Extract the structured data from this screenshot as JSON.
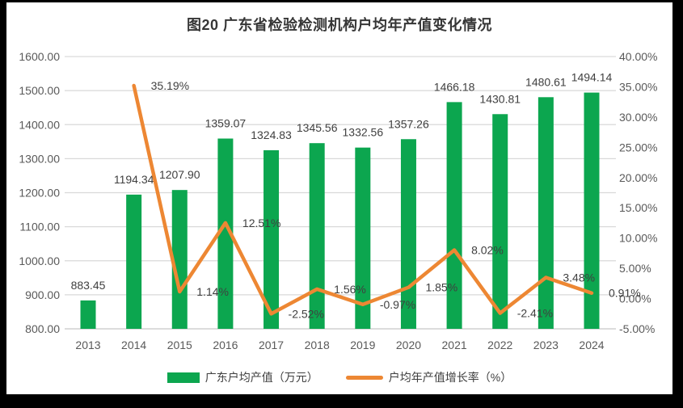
{
  "title": "图20 广东省检验检测机构户均年产值变化情况",
  "legend": {
    "bar_label": "广东户均产值（万元）",
    "line_label": "户均年产值增长率（%）"
  },
  "colors": {
    "bar": "#0ca64f",
    "line": "#ed8733",
    "grid": "#d9d9d9",
    "axis_line": "#c6c6c6",
    "axis_text": "#595959",
    "data_label": "#3f3f3f",
    "chart_background": "#ffffff",
    "frame": "#000000"
  },
  "chart_data": {
    "type": "combo",
    "title": "图20 广东省检验检测机构户均年产值变化情况",
    "categories": [
      "2013",
      "2014",
      "2015",
      "2016",
      "2017",
      "2018",
      "2019",
      "2020",
      "2021",
      "2022",
      "2023",
      "2024"
    ],
    "series": [
      {
        "name": "广东户均产值（万元）",
        "type": "bar",
        "axis": "left",
        "color": "#0ca64f",
        "values": [
          883.45,
          1194.34,
          1207.9,
          1359.07,
          1324.83,
          1345.56,
          1332.56,
          1357.26,
          1466.18,
          1430.81,
          1480.61,
          1494.14
        ],
        "labels": [
          "883.45",
          "1194.34",
          "1207.90",
          "1359.07",
          "1324.83",
          "1345.56",
          "1332.56",
          "1357.26",
          "1466.18",
          "1430.81",
          "1480.61",
          "1494.14"
        ]
      },
      {
        "name": "户均年产值增长率（%）",
        "type": "line",
        "axis": "right",
        "color": "#ed8733",
        "values": [
          null,
          35.19,
          1.14,
          12.51,
          -2.52,
          1.56,
          -0.97,
          1.85,
          8.02,
          -2.41,
          3.48,
          0.91
        ],
        "labels": [
          null,
          "35.19%",
          "1.14%",
          "12.51%",
          "-2.52%",
          "1.56%",
          "-0.97%",
          "1.85%",
          "8.02%",
          "-2.41%",
          "3.48%",
          "0.91%"
        ]
      }
    ],
    "left_axis": {
      "min": 800,
      "max": 1600,
      "step": 100,
      "ticks": [
        "1600.00",
        "1500.00",
        "1400.00",
        "1300.00",
        "1200.00",
        "1100.00",
        "1000.00",
        "900.00",
        "800.00"
      ]
    },
    "right_axis": {
      "min": -5,
      "max": 40,
      "step": 5,
      "ticks": [
        "40.00%",
        "35.00%",
        "30.00%",
        "25.00%",
        "20.00%",
        "15.00%",
        "10.00%",
        "5.00%",
        "0.00%",
        "-5.00%"
      ]
    },
    "grid": true,
    "legend_position": "bottom"
  }
}
